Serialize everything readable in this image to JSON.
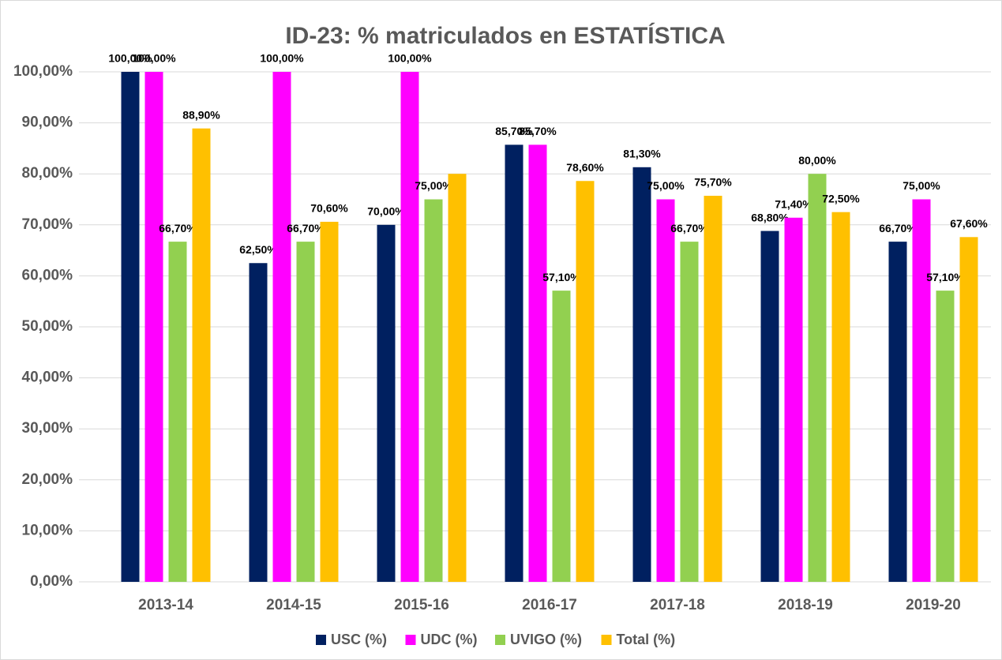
{
  "chart_data": {
    "type": "bar",
    "title": "ID-23: % matriculados en ESTATÍSTICA",
    "categories": [
      "2013-14",
      "2014-15",
      "2015-16",
      "2016-17",
      "2017-18",
      "2018-19",
      "2019-20"
    ],
    "series": [
      {
        "name": "USC (%)",
        "color": "#002060",
        "values": [
          100,
          62.5,
          70,
          85.7,
          81.3,
          68.8,
          66.7
        ],
        "value_labels": [
          "100,00%",
          "62,50%",
          "70,00%",
          "85,70%",
          "81,30%",
          "68,80%",
          "66,70%"
        ]
      },
      {
        "name": "UDC (%)",
        "color": "#ff00ff",
        "values": [
          100,
          100,
          100,
          85.7,
          75,
          71.4,
          75
        ],
        "value_labels": [
          "100,00%",
          "100,00%",
          "100,00%",
          "85,70%",
          "75,00%",
          "71,40%",
          "75,00%"
        ]
      },
      {
        "name": "UVIGO (%)",
        "color": "#92d050",
        "values": [
          66.7,
          66.7,
          75,
          57.1,
          66.7,
          80,
          57.1
        ],
        "value_labels": [
          "66,70%",
          "66,70%",
          "75,00%",
          "57,10%",
          "66,70%",
          "80,00%",
          "57,10%"
        ]
      },
      {
        "name": "Total (%)",
        "color": "#ffc000",
        "values": [
          88.9,
          70.6,
          80,
          78.6,
          75.7,
          72.5,
          67.6
        ],
        "value_labels": [
          "88,90%",
          "70,60%",
          null,
          "78,60%",
          "75,70%",
          "72,50%",
          "67,60%"
        ]
      }
    ],
    "ylim": [
      0,
      100
    ],
    "yticks": [
      {
        "value": 0,
        "label": "0,00%"
      },
      {
        "value": 10,
        "label": "10,00%"
      },
      {
        "value": 20,
        "label": "20,00%"
      },
      {
        "value": 30,
        "label": "30,00%"
      },
      {
        "value": 40,
        "label": "40,00%"
      },
      {
        "value": 50,
        "label": "50,00%"
      },
      {
        "value": 60,
        "label": "60,00%"
      },
      {
        "value": 70,
        "label": "70,00%"
      },
      {
        "value": 80,
        "label": "80,00%"
      },
      {
        "value": 90,
        "label": "90,00%"
      },
      {
        "value": 100,
        "label": "100,00%"
      }
    ],
    "grid": true,
    "legend": "bottom"
  }
}
